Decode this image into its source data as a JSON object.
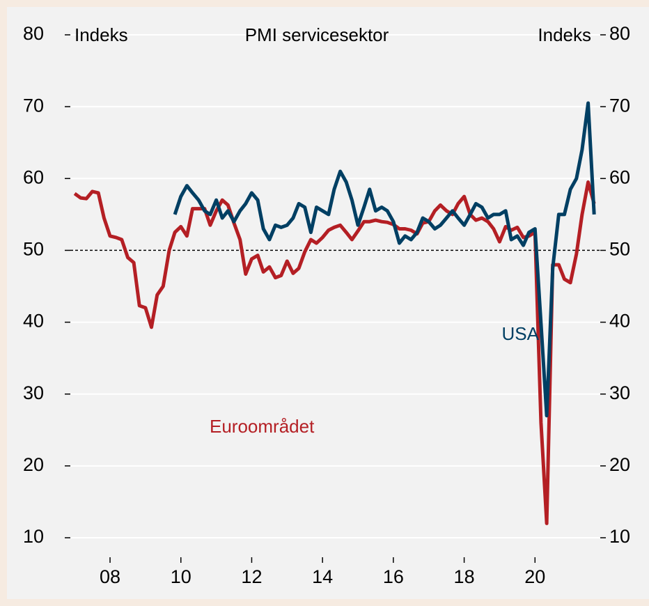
{
  "chart_data": {
    "type": "line",
    "title": "PMI servicesektor",
    "y_label": "Indeks",
    "y2_label": "Indeks",
    "annotations": [
      "USA",
      "Euroområdet"
    ],
    "x": [
      2007,
      2007.17,
      2007.33,
      2007.5,
      2007.67,
      2007.83,
      2008,
      2008.17,
      2008.33,
      2008.5,
      2008.67,
      2008.83,
      2009,
      2009.17,
      2009.33,
      2009.5,
      2009.67,
      2009.83,
      2010,
      2010.17,
      2010.33,
      2010.5,
      2010.67,
      2010.83,
      2011,
      2011.17,
      2011.33,
      2011.5,
      2011.67,
      2011.83,
      2012,
      2012.17,
      2012.33,
      2012.5,
      2012.67,
      2012.83,
      2013,
      2013.17,
      2013.33,
      2013.5,
      2013.67,
      2013.83,
      2014,
      2014.17,
      2014.33,
      2014.5,
      2014.67,
      2014.83,
      2015,
      2015.17,
      2015.33,
      2015.5,
      2015.67,
      2015.83,
      2016,
      2016.17,
      2016.33,
      2016.5,
      2016.67,
      2016.83,
      2017,
      2017.17,
      2017.33,
      2017.5,
      2017.67,
      2017.83,
      2018,
      2018.17,
      2018.33,
      2018.5,
      2018.67,
      2018.83,
      2019,
      2019.17,
      2019.33,
      2019.5,
      2019.67,
      2019.83,
      2020,
      2020.17,
      2020.33,
      2020.5,
      2020.67,
      2020.83,
      2021,
      2021.17,
      2021.33,
      2021.5,
      2021.67
    ],
    "series": [
      {
        "name": "Euroområdet",
        "color": "#b41f24",
        "values": [
          57.9,
          57.3,
          57.2,
          58.2,
          58.0,
          54.5,
          52.0,
          51.8,
          51.5,
          49.0,
          48.3,
          42.3,
          42.0,
          39.3,
          43.8,
          45.0,
          50.0,
          52.5,
          53.3,
          52.0,
          55.8,
          55.8,
          55.8,
          53.5,
          55.5,
          57.0,
          56.3,
          53.8,
          51.5,
          46.7,
          48.8,
          49.3,
          47.0,
          47.7,
          46.2,
          46.5,
          48.5,
          46.8,
          47.5,
          49.8,
          51.5,
          51.0,
          51.8,
          52.8,
          53.2,
          53.5,
          52.5,
          51.5,
          52.7,
          54.0,
          54.0,
          54.2,
          54.0,
          53.9,
          53.6,
          53.0,
          53.0,
          52.8,
          52.3,
          53.8,
          54.0,
          55.5,
          56.3,
          55.5,
          55.0,
          56.5,
          57.5,
          55.0,
          54.2,
          54.5,
          54.0,
          53.0,
          51.2,
          53.3,
          52.8,
          53.2,
          51.8,
          52.0,
          52.5,
          26.0,
          12.0,
          48.0,
          48.0,
          46.0,
          45.5,
          49.5,
          55.0,
          59.5,
          56.5
        ]
      },
      {
        "name": "USA",
        "color": "#003f63",
        "values": [
          null,
          null,
          null,
          null,
          null,
          null,
          null,
          null,
          null,
          null,
          null,
          null,
          null,
          null,
          null,
          null,
          null,
          55.0,
          57.5,
          59.0,
          58.0,
          57.0,
          55.5,
          55.0,
          57.0,
          54.5,
          55.5,
          54.0,
          55.5,
          56.5,
          58.0,
          57.0,
          53.0,
          51.5,
          53.5,
          53.2,
          53.5,
          54.5,
          56.5,
          56.0,
          52.5,
          56.0,
          55.5,
          55.0,
          58.5,
          61.0,
          59.5,
          57.0,
          53.5,
          56.0,
          58.5,
          55.5,
          56.0,
          55.5,
          54.0,
          51.0,
          52.0,
          51.5,
          52.5,
          54.5,
          54.0,
          53.0,
          53.5,
          54.5,
          55.5,
          54.5,
          53.5,
          55.0,
          56.5,
          56.0,
          54.5,
          55.0,
          55.0,
          55.5,
          51.5,
          52.0,
          50.7,
          52.5,
          53.0,
          39.8,
          27.0,
          47.5,
          55.0,
          55.0,
          58.5,
          60.0,
          64.0,
          70.5,
          55.0
        ]
      }
    ],
    "xlim": [
      2006.8,
      2022
    ],
    "xticks": [
      {
        "value": 2008,
        "label": "08"
      },
      {
        "value": 2010,
        "label": "10"
      },
      {
        "value": 2012,
        "label": "12"
      },
      {
        "value": 2014,
        "label": "14"
      },
      {
        "value": 2016,
        "label": "16"
      },
      {
        "value": 2018,
        "label": "18"
      },
      {
        "value": 2020,
        "label": "20"
      }
    ],
    "ylim": [
      10,
      80
    ],
    "yticks": [
      10,
      20,
      30,
      40,
      50,
      60,
      70,
      80
    ],
    "y2lim": [
      10,
      80
    ],
    "y2ticks": [
      10,
      20,
      30,
      40,
      50,
      60,
      70,
      80
    ],
    "reference_line": 50,
    "grid": true
  }
}
